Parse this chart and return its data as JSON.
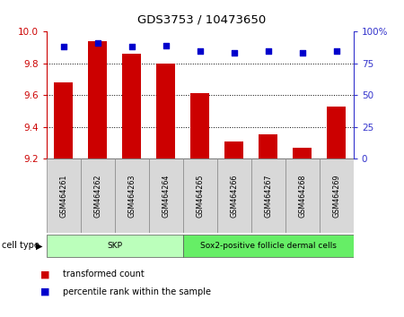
{
  "title": "GDS3753 / 10473650",
  "samples": [
    "GSM464261",
    "GSM464262",
    "GSM464263",
    "GSM464264",
    "GSM464265",
    "GSM464266",
    "GSM464267",
    "GSM464268",
    "GSM464269"
  ],
  "transformed_count": [
    9.68,
    9.94,
    9.86,
    9.8,
    9.61,
    9.31,
    9.35,
    9.27,
    9.53
  ],
  "percentile_rank": [
    88,
    91,
    88,
    89,
    85,
    83,
    85,
    83,
    85
  ],
  "ymin": 9.2,
  "ymax": 10.0,
  "yticks": [
    9.2,
    9.4,
    9.6,
    9.8,
    10.0
  ],
  "right_yticks": [
    0,
    25,
    50,
    75,
    100
  ],
  "bar_color": "#cc0000",
  "dot_color": "#0000cc",
  "cell_type_groups": [
    {
      "label": "SKP",
      "start": 0,
      "end": 4,
      "color": "#bbffbb"
    },
    {
      "label": "Sox2-positive follicle dermal cells",
      "start": 4,
      "end": 9,
      "color": "#66ee66"
    }
  ],
  "cell_type_label": "cell type",
  "legend_bar_label": "transformed count",
  "legend_dot_label": "percentile rank within the sample",
  "left_axis_color": "#cc0000",
  "right_axis_color": "#3333cc"
}
